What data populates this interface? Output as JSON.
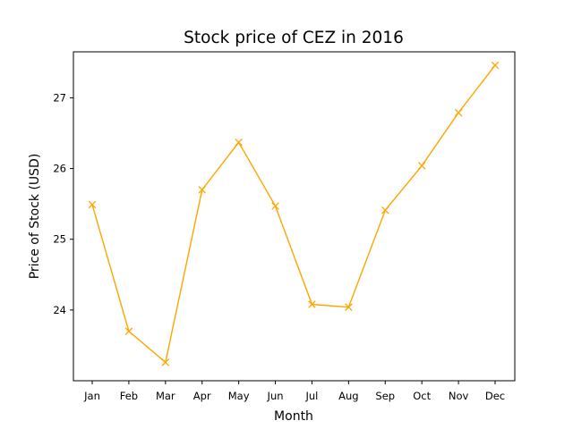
{
  "chart_data": {
    "type": "line",
    "title": "Stock price of CEZ in 2016",
    "xlabel": "Month",
    "ylabel": "Price of Stock (USD)",
    "categories": [
      "Jan",
      "Feb",
      "Mar",
      "Apr",
      "May",
      "Jun",
      "Jul",
      "Aug",
      "Sep",
      "Oct",
      "Nov",
      "Dec"
    ],
    "series": [
      {
        "values": [
          25.49,
          23.7,
          23.26,
          25.7,
          26.37,
          25.47,
          24.08,
          24.04,
          25.41,
          26.04,
          26.79,
          27.46
        ],
        "color": "#ffa500",
        "marker": "x"
      }
    ],
    "ylim": [
      23.0,
      27.65
    ],
    "yticks": [
      24,
      25,
      26,
      27
    ],
    "grid": false,
    "legend": "none"
  }
}
